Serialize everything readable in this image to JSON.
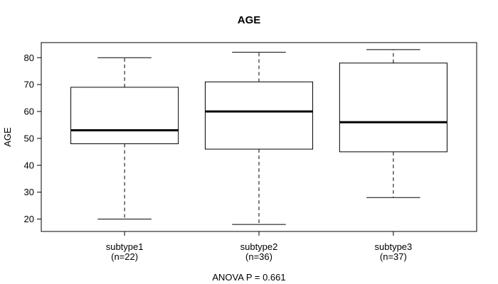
{
  "chart_data": {
    "type": "boxplot",
    "title": "AGE",
    "ylabel": "AGE",
    "footer": "ANOVA P = 0.661",
    "yticks": [
      20,
      30,
      40,
      50,
      60,
      70,
      80
    ],
    "ylim": [
      15.4,
      85.6
    ],
    "xlim": [
      0.38,
      3.62
    ],
    "grid": false,
    "legend": "none",
    "groups": [
      {
        "label": "subtype1",
        "sublabel": "(n=22)",
        "n": 22,
        "x": 1,
        "whisker_low": 20,
        "q1": 48,
        "median": 53,
        "q3": 69,
        "whisker_high": 80
      },
      {
        "label": "subtype2",
        "sublabel": "(n=36)",
        "n": 36,
        "x": 2,
        "whisker_low": 18,
        "q1": 46,
        "median": 60,
        "q3": 71,
        "whisker_high": 82
      },
      {
        "label": "subtype3",
        "sublabel": "(n=37)",
        "n": 37,
        "x": 3,
        "whisker_low": 28,
        "q1": 45,
        "median": 56,
        "q3": 78,
        "whisker_high": 83
      }
    ],
    "colors": {
      "line": "#000000",
      "median": "#000000",
      "box_fill": "#ffffff",
      "background": "#ffffff"
    },
    "box_half_width": 0.4,
    "cap_half_width": 0.2,
    "whisker_style": "dashed"
  }
}
